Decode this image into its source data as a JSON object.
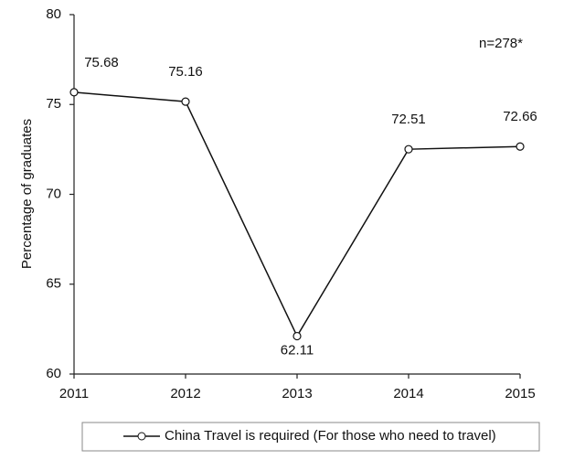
{
  "chart_data": {
    "type": "line",
    "y_label": "Percentage of graduates",
    "annotation": "n=278*",
    "x": [
      2011,
      2012,
      2013,
      2014,
      2015
    ],
    "xlim": [
      2011,
      2015
    ],
    "xticks": [
      2011,
      2012,
      2013,
      2014,
      2015
    ],
    "ylim": [
      60,
      80
    ],
    "yticks": [
      60,
      65,
      70,
      75,
      80
    ],
    "series": [
      {
        "name": "China Travel is required (For those who need to travel)",
        "color": "#111111",
        "values": [
          75.68,
          75.16,
          62.11,
          72.51,
          72.66
        ]
      }
    ],
    "grid": false,
    "legend": "bottom"
  }
}
